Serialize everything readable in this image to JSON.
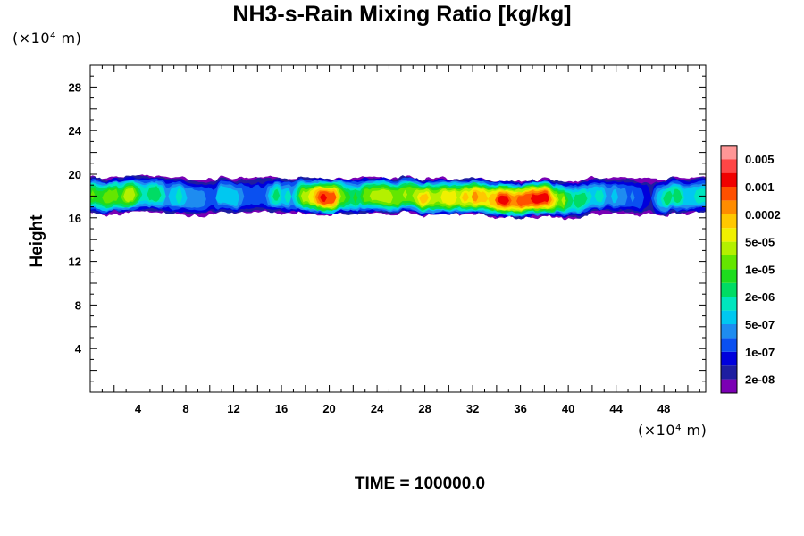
{
  "chart_data": {
    "type": "heatmap",
    "title": "NH3-s-Rain Mixing Ratio [kg/kg]",
    "ylabel": "Height",
    "xunit": "(×10⁴ m)",
    "yunit": "(×10⁴ m)",
    "xlim": [
      0,
      51.5
    ],
    "ylim": [
      0,
      30
    ],
    "xticks": [
      4,
      8,
      12,
      16,
      20,
      24,
      28,
      32,
      36,
      40,
      44,
      48
    ],
    "yticks": [
      4,
      8,
      12,
      16,
      20,
      24,
      28
    ],
    "footer": "TIME = 100000.0",
    "colorbar": {
      "colors": [
        "#7b00b4",
        "#1e1ea0",
        "#0000dc",
        "#0a50f0",
        "#1e8cf0",
        "#00c8f0",
        "#00e6be",
        "#00dc64",
        "#1edc1e",
        "#64e600",
        "#b4f000",
        "#f0f000",
        "#ffc800",
        "#ff8c00",
        "#ff5000",
        "#f00000",
        "#ff4646",
        "#ff9696"
      ],
      "labels": [
        "2e-08",
        "1e-07",
        "5e-07",
        "2e-06",
        "1e-05",
        "5e-05",
        "0.0002",
        "0.001",
        "0.005"
      ]
    },
    "features": [
      {
        "band": "cloud_layer",
        "x_range": [
          0,
          51.5
        ],
        "height_range": [
          16.2,
          19.8
        ],
        "peak_max_level": "0.001"
      },
      {
        "core": "high_1",
        "x": 20.0,
        "height": 17.5,
        "level": "0.001"
      },
      {
        "core": "high_2",
        "x": 37.0,
        "height": 17.6,
        "level": "0.001"
      },
      {
        "core": "mid",
        "x": 29.5,
        "height": 17.8,
        "level": "5e-05"
      }
    ]
  }
}
